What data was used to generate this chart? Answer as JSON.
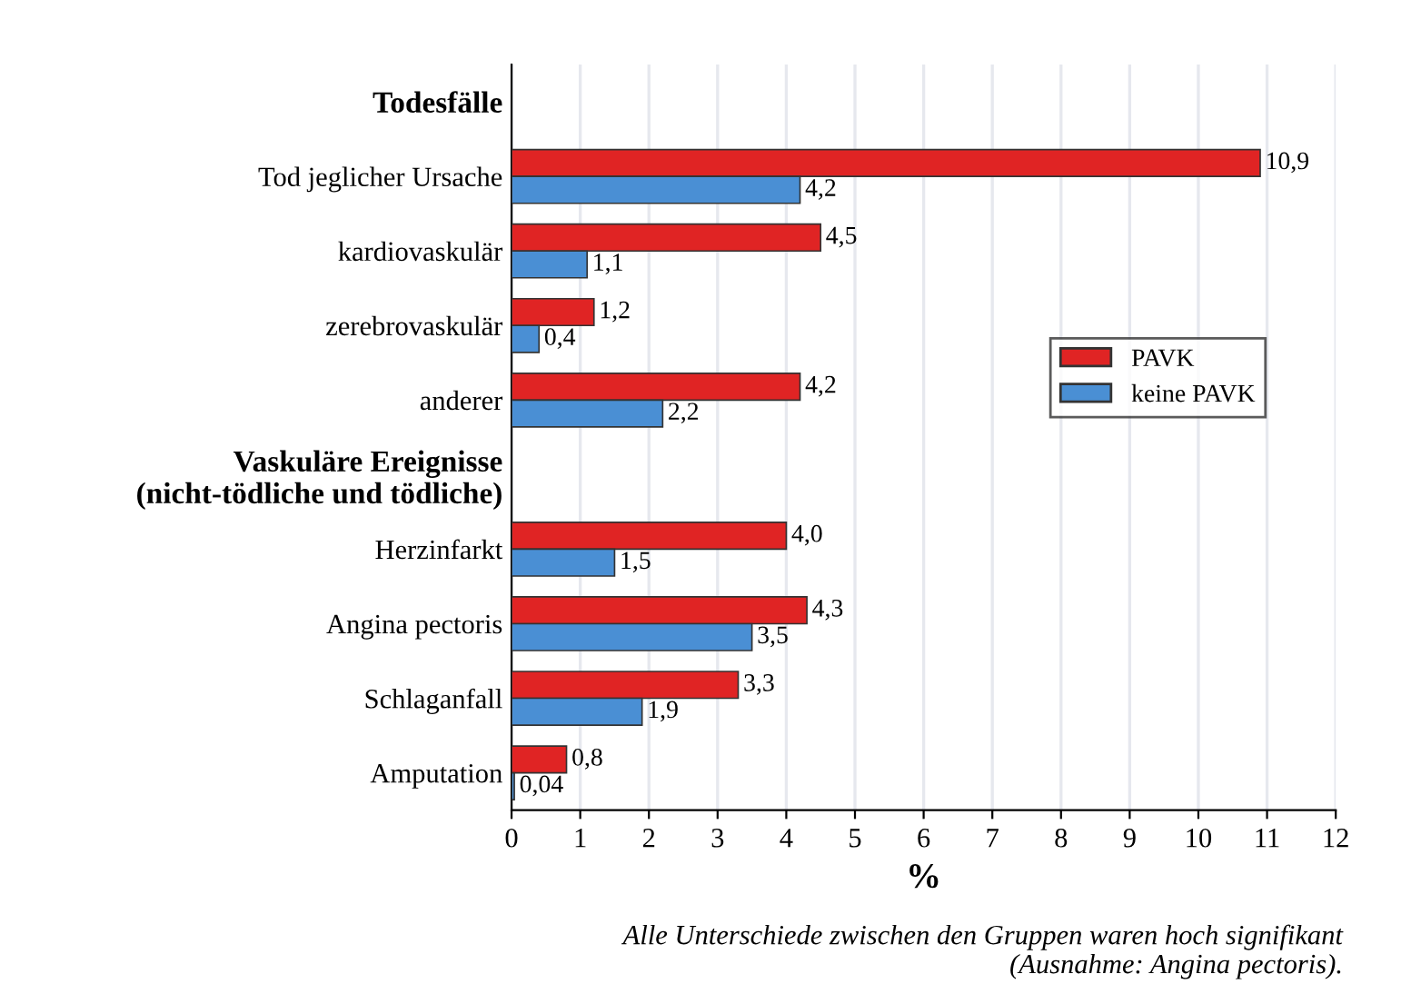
{
  "chart_data": {
    "type": "bar",
    "orientation": "horizontal",
    "xlabel": "%",
    "categories": [
      "Todesfälle",
      "Tod jeglicher Ursache",
      "kardiovaskulär",
      "zerebrovaskulär",
      "anderer",
      "Vaskuläre Ereignisse\n(nicht-tödliche und tödliche)",
      "Herzinfarkt",
      "Angina pectoris",
      "Schlaganfall",
      "Amputation"
    ],
    "series": [
      {
        "name": "PAVK",
        "color": "#e02424",
        "values": [
          null,
          10.9,
          4.5,
          1.2,
          4.2,
          null,
          4.0,
          4.3,
          3.3,
          0.8
        ],
        "value_labels": [
          null,
          "10,9",
          "4,5",
          "1,2",
          "4,2",
          null,
          "4,0",
          "4,3",
          "3,3",
          "0,8"
        ]
      },
      {
        "name": "keine PAVK",
        "color": "#4a8fd4",
        "values": [
          null,
          4.2,
          1.1,
          0.4,
          2.2,
          null,
          1.5,
          3.5,
          1.9,
          0.04
        ],
        "value_labels": [
          null,
          "4,2",
          "1,1",
          "0,4",
          "2,2",
          null,
          "1,5",
          "3,5",
          "1,9",
          "0,04"
        ]
      }
    ],
    "xlim": [
      0,
      12
    ],
    "xticks": [
      0,
      1,
      2,
      3,
      4,
      5,
      6,
      7,
      8,
      9,
      10,
      11,
      12
    ],
    "grid": "x",
    "legend": "right",
    "annotations": [
      "Alle Unterschiede zwischen den Gruppen waren hoch signifikant\n(Ausnahme: Angina pectoris)."
    ]
  }
}
